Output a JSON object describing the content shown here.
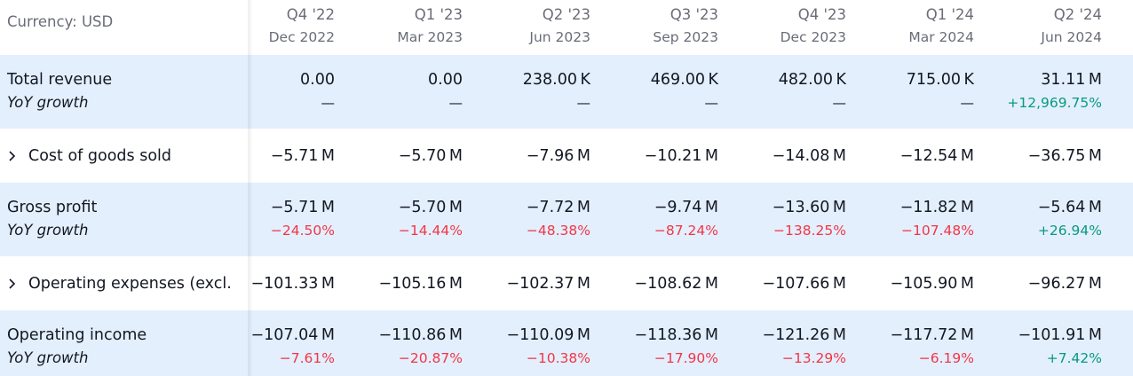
{
  "header": {
    "currency": "Currency: USD",
    "columns": [
      {
        "period": "Q4 '22",
        "date": "Dec 2022"
      },
      {
        "period": "Q1 '23",
        "date": "Mar 2023"
      },
      {
        "period": "Q2 '23",
        "date": "Jun 2023"
      },
      {
        "period": "Q3 '23",
        "date": "Sep 2023"
      },
      {
        "period": "Q4 '23",
        "date": "Dec 2023"
      },
      {
        "period": "Q1 '24",
        "date": "Mar 2024"
      },
      {
        "period": "Q2 '24",
        "date": "Jun 2024"
      }
    ]
  },
  "colors": {
    "positive": "#089981",
    "negative": "#f23645",
    "highlight": "#e3effd"
  },
  "rows": [
    {
      "label": "Total revenue",
      "highlight": true,
      "expandable": false,
      "values": [
        "0.00",
        "0.00",
        "238.00 K",
        "469.00 K",
        "482.00 K",
        "715.00 K",
        "31.11 M"
      ],
      "growth_label": "YoY growth",
      "growth": [
        "—",
        "—",
        "—",
        "—",
        "—",
        "—",
        "+12,969.75%"
      ]
    },
    {
      "label": "Cost of goods sold",
      "highlight": false,
      "expandable": true,
      "values": [
        "−5.71 M",
        "−5.70 M",
        "−7.96 M",
        "−10.21 M",
        "−14.08 M",
        "−12.54 M",
        "−36.75 M"
      ]
    },
    {
      "label": "Gross profit",
      "highlight": true,
      "expandable": false,
      "values": [
        "−5.71 M",
        "−5.70 M",
        "−7.72 M",
        "−9.74 M",
        "−13.60 M",
        "−11.82 M",
        "−5.64 M"
      ],
      "growth_label": "YoY growth",
      "growth": [
        "−24.50%",
        "−14.44%",
        "−48.38%",
        "−87.24%",
        "−138.25%",
        "−107.48%",
        "+26.94%"
      ]
    },
    {
      "label": "Operating expenses (excl.",
      "highlight": false,
      "expandable": true,
      "values": [
        "−101.33 M",
        "−105.16 M",
        "−102.37 M",
        "−108.62 M",
        "−107.66 M",
        "−105.90 M",
        "−96.27 M"
      ]
    },
    {
      "label": "Operating income",
      "highlight": true,
      "expandable": false,
      "values": [
        "−107.04 M",
        "−110.86 M",
        "−110.09 M",
        "−118.36 M",
        "−121.26 M",
        "−117.72 M",
        "−101.91 M"
      ],
      "growth_label": "YoY growth",
      "growth": [
        "−7.61%",
        "−20.87%",
        "−10.38%",
        "−17.90%",
        "−13.29%",
        "−6.19%",
        "+7.42%"
      ]
    }
  ]
}
